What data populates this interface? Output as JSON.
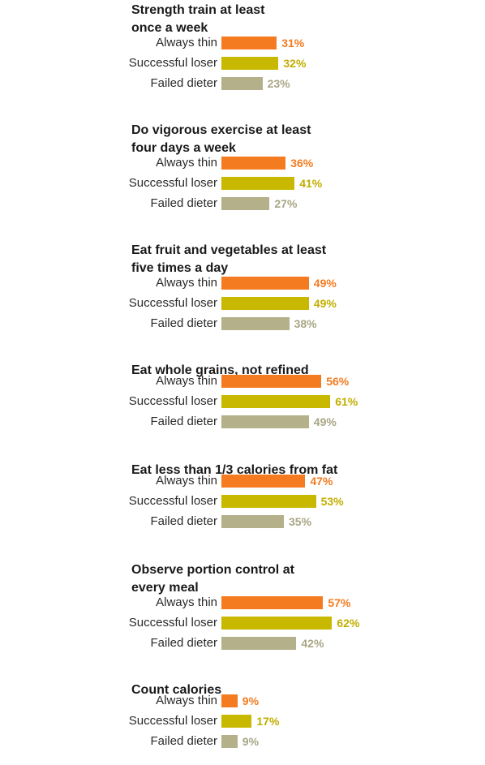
{
  "chart_data": {
    "type": "bar",
    "series": [
      {
        "name": "Always thin",
        "color": "#F47B20"
      },
      {
        "name": "Successful loser",
        "color": "#C9B800"
      },
      {
        "name": "Failed dieter",
        "color": "#B3B08A"
      }
    ],
    "value_label_colors": [
      "#F47B20",
      "#C2AE00",
      "#A8A684"
    ],
    "value_suffix": "%",
    "xlim": [
      0,
      100
    ],
    "groups": [
      {
        "title": "Strength train at least\nonce a week",
        "values": [
          31,
          32,
          23
        ]
      },
      {
        "title": "Do vigorous exercise at least\nfour days a week",
        "values": [
          36,
          41,
          27
        ]
      },
      {
        "title": "Eat fruit and vegetables at least\nfive times a day",
        "values": [
          49,
          49,
          38
        ]
      },
      {
        "title": "Eat whole grains, not refined",
        "values": [
          56,
          61,
          49
        ]
      },
      {
        "title": "Eat less than 1/3 calories from fat",
        "values": [
          47,
          53,
          35
        ]
      },
      {
        "title": "Observe portion control at\nevery meal",
        "values": [
          57,
          62,
          42
        ]
      },
      {
        "title": "Count calories",
        "values": [
          9,
          17,
          9
        ]
      }
    ]
  }
}
